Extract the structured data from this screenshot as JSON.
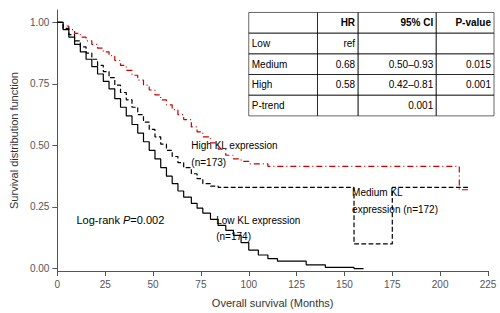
{
  "chart_data": {
    "type": "step",
    "xlabel": "Overall survival (Months)",
    "ylabel": "Survival distribution function",
    "xlim": [
      0,
      225
    ],
    "ylim": [
      -0.01,
      1.05
    ],
    "xticks": [
      0,
      25,
      50,
      75,
      100,
      125,
      150,
      175,
      200,
      225
    ],
    "yticks": [
      {
        "value": 0,
        "label": "0.00"
      },
      {
        "value": 0.25,
        "label": "0.25"
      },
      {
        "value": 0.5,
        "label": "0.50"
      },
      {
        "value": 0.75,
        "label": "0.75"
      },
      {
        "value": 1,
        "label": "1.00"
      }
    ],
    "grid": false,
    "series": [
      {
        "color": "#cc0000",
        "line_style": "dashdot",
        "x": [
          0,
          3,
          6,
          9,
          12,
          15,
          18,
          21,
          24,
          27,
          30,
          33,
          36,
          39,
          42,
          45,
          48,
          51,
          54,
          57,
          60,
          63,
          66,
          70,
          73,
          76,
          80,
          84,
          88,
          92,
          96,
          100,
          110,
          120,
          130,
          145,
          160,
          175,
          210,
          215
        ],
        "values": [
          1.0,
          0.985,
          0.97,
          0.955,
          0.94,
          0.925,
          0.91,
          0.895,
          0.88,
          0.865,
          0.845,
          0.825,
          0.805,
          0.785,
          0.765,
          0.745,
          0.725,
          0.705,
          0.685,
          0.665,
          0.645,
          0.625,
          0.605,
          0.575,
          0.555,
          0.535,
          0.51,
          0.485,
          0.46,
          0.445,
          0.435,
          0.425,
          0.415,
          0.415,
          0.415,
          0.415,
          0.415,
          0.415,
          0.32,
          0.32
        ]
      },
      {
        "color": "#000000",
        "line_style": "dashed",
        "x": [
          0,
          3,
          6,
          9,
          12,
          15,
          18,
          21,
          24,
          27,
          30,
          33,
          36,
          39,
          42,
          45,
          48,
          51,
          54,
          57,
          60,
          63,
          66,
          70,
          73,
          76,
          80,
          84,
          88,
          92,
          96,
          100,
          105,
          110,
          120,
          130,
          145,
          155,
          165,
          175,
          210,
          215
        ],
        "values": [
          1.0,
          0.975,
          0.95,
          0.925,
          0.9,
          0.875,
          0.85,
          0.825,
          0.8,
          0.775,
          0.745,
          0.715,
          0.685,
          0.655,
          0.625,
          0.595,
          0.565,
          0.535,
          0.505,
          0.48,
          0.455,
          0.43,
          0.41,
          0.385,
          0.365,
          0.345,
          0.335,
          0.33,
          0.33,
          0.33,
          0.33,
          0.33,
          0.33,
          0.33,
          0.33,
          0.33,
          0.33,
          0.1,
          0.1,
          0.33,
          0.33,
          0.33
        ]
      },
      {
        "color": "#000000",
        "line_style": "solid",
        "x": [
          0,
          3,
          6,
          9,
          12,
          15,
          18,
          21,
          24,
          27,
          30,
          33,
          36,
          39,
          42,
          45,
          48,
          51,
          54,
          57,
          60,
          63,
          66,
          70,
          73,
          76,
          80,
          84,
          88,
          92,
          96,
          100,
          105,
          110,
          115,
          120,
          130,
          140,
          155,
          160
        ],
        "values": [
          1.0,
          0.97,
          0.94,
          0.91,
          0.88,
          0.85,
          0.82,
          0.79,
          0.76,
          0.73,
          0.69,
          0.655,
          0.62,
          0.585,
          0.55,
          0.515,
          0.48,
          0.445,
          0.41,
          0.375,
          0.345,
          0.315,
          0.29,
          0.265,
          0.245,
          0.225,
          0.2,
          0.175,
          0.155,
          0.135,
          0.105,
          0.075,
          0.055,
          0.04,
          0.03,
          0.03,
          0.015,
          0.005,
          0.0,
          0.0
        ]
      }
    ],
    "annotations": [
      [
        "High KL expression",
        "(n=173)"
      ],
      [
        "Medium KL",
        "expression (n=172)"
      ],
      [
        "Low KL expression",
        "(n=174)"
      ]
    ],
    "logrank": [
      "Log-rank ",
      "P",
      "=0.002"
    ],
    "table": {
      "columns": [
        null,
        "HR",
        "95% CI",
        "P-value"
      ],
      "rows": [
        [
          "Low",
          "ref",
          null,
          null
        ],
        [
          "Medium",
          "0.68",
          "0.50–0.93",
          "0.015"
        ],
        [
          "High",
          "0.58",
          "0.42–0.81",
          "0.001"
        ],
        [
          "P-trend",
          null,
          "0.001",
          null
        ]
      ]
    }
  }
}
